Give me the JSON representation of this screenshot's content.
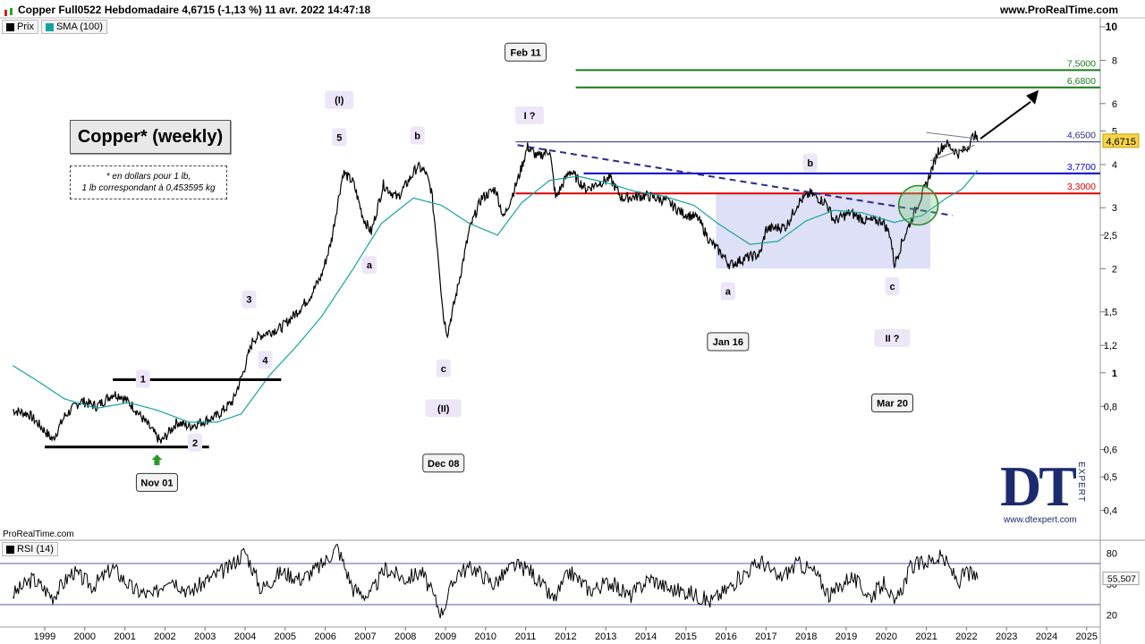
{
  "header": {
    "title": "Copper Full0522 Hebdomadaire 4,6715 (-1,13 %) 11 avr. 2022 14:47:18",
    "site": "www.ProRealTime.com"
  },
  "legend": {
    "price_label": "Prix",
    "sma_label": "SMA (100)"
  },
  "title_box": "Copper* (weekly)",
  "note": {
    "line1": "* en dollars pour 1 lb,",
    "line2": "1 lb correspondant à 0,453595 kg"
  },
  "source_label": "ProRealTime.com",
  "rsi_legend": "RSI (14)",
  "logo": {
    "text": "DT",
    "sub": "EXPERT",
    "url": "www.dtexpert.com"
  },
  "colors": {
    "price": "#000000",
    "sma": "#17a2a2",
    "green_level": "#1a7a1a",
    "blue_level": "#0000cc",
    "red_level": "#dd0000",
    "trend_dash": "#2a2a8a",
    "shade": "#c7ccf0",
    "rsi_line": "#000000",
    "rsi_over": "#f4b6b6",
    "rsi_under": "#b9e4b9"
  },
  "chart_data": {
    "type": "line",
    "title": "Copper Full0522 Hebdomadaire",
    "x_ticks": [
      "1999",
      "2000",
      "2001",
      "2002",
      "2003",
      "2004",
      "2005",
      "2006",
      "2007",
      "2008",
      "2009",
      "2010",
      "2011",
      "2012",
      "2013",
      "2014",
      "2015",
      "2016",
      "2017",
      "2018",
      "2019",
      "2020",
      "2021",
      "2022",
      "2023",
      "2024",
      "2025"
    ],
    "y_scale": "log",
    "ylim": [
      0.33,
      10
    ],
    "y_ticks": [
      {
        "value": 10,
        "label": "10"
      },
      {
        "value": 8,
        "label": "8"
      },
      {
        "value": 6,
        "label": "6"
      },
      {
        "value": 5,
        "label": "5"
      },
      {
        "value": 4,
        "label": "4"
      },
      {
        "value": 3,
        "label": "3"
      },
      {
        "value": 2.5,
        "label": "2,5"
      },
      {
        "value": 2,
        "label": "2"
      },
      {
        "value": 1.5,
        "label": "1,5"
      },
      {
        "value": 1.2,
        "label": "1,2"
      },
      {
        "value": 1,
        "label": "1"
      },
      {
        "value": 0.8,
        "label": "0,8"
      },
      {
        "value": 0.6,
        "label": "0,6"
      },
      {
        "value": 0.5,
        "label": "0,5"
      },
      {
        "value": 0.4,
        "label": "0,4"
      }
    ],
    "series": [
      {
        "name": "Prix",
        "points": [
          [
            1998.2,
            0.78
          ],
          [
            1998.6,
            0.76
          ],
          [
            1998.9,
            0.7
          ],
          [
            1999.2,
            0.64
          ],
          [
            1999.5,
            0.75
          ],
          [
            1999.9,
            0.83
          ],
          [
            2000.3,
            0.8
          ],
          [
            2000.7,
            0.87
          ],
          [
            2000.9,
            0.86
          ],
          [
            2001.2,
            0.8
          ],
          [
            2001.6,
            0.7
          ],
          [
            2001.9,
            0.63
          ],
          [
            2002.3,
            0.72
          ],
          [
            2002.6,
            0.7
          ],
          [
            2002.9,
            0.72
          ],
          [
            2003.3,
            0.75
          ],
          [
            2003.7,
            0.83
          ],
          [
            2003.95,
            1.0
          ],
          [
            2004.2,
            1.25
          ],
          [
            2004.5,
            1.3
          ],
          [
            2004.9,
            1.35
          ],
          [
            2005.3,
            1.5
          ],
          [
            2005.6,
            1.65
          ],
          [
            2005.9,
            1.9
          ],
          [
            2006.15,
            2.4
          ],
          [
            2006.35,
            3.3
          ],
          [
            2006.45,
            3.8
          ],
          [
            2006.7,
            3.55
          ],
          [
            2006.95,
            2.8
          ],
          [
            2007.15,
            2.55
          ],
          [
            2007.45,
            3.5
          ],
          [
            2007.8,
            3.2
          ],
          [
            2008.15,
            3.7
          ],
          [
            2008.3,
            3.95
          ],
          [
            2008.5,
            3.8
          ],
          [
            2008.65,
            3.35
          ],
          [
            2008.8,
            2.3
          ],
          [
            2008.95,
            1.45
          ],
          [
            2009.05,
            1.3
          ],
          [
            2009.3,
            1.75
          ],
          [
            2009.6,
            2.6
          ],
          [
            2009.9,
            3.2
          ],
          [
            2010.25,
            3.4
          ],
          [
            2010.45,
            2.8
          ],
          [
            2010.8,
            3.6
          ],
          [
            2011.05,
            4.5
          ],
          [
            2011.3,
            4.2
          ],
          [
            2011.6,
            4.4
          ],
          [
            2011.75,
            3.2
          ],
          [
            2012.1,
            3.85
          ],
          [
            2012.5,
            3.4
          ],
          [
            2013.1,
            3.65
          ],
          [
            2013.4,
            3.2
          ],
          [
            2014.0,
            3.25
          ],
          [
            2014.5,
            3.15
          ],
          [
            2014.9,
            2.9
          ],
          [
            2015.3,
            2.8
          ],
          [
            2015.6,
            2.4
          ],
          [
            2015.9,
            2.2
          ],
          [
            2016.1,
            2.05
          ],
          [
            2016.5,
            2.15
          ],
          [
            2016.85,
            2.2
          ],
          [
            2017.0,
            2.6
          ],
          [
            2017.5,
            2.65
          ],
          [
            2017.8,
            3.1
          ],
          [
            2018.1,
            3.3
          ],
          [
            2018.5,
            3.1
          ],
          [
            2018.7,
            2.75
          ],
          [
            2019.1,
            2.9
          ],
          [
            2019.5,
            2.75
          ],
          [
            2019.9,
            2.75
          ],
          [
            2020.1,
            2.5
          ],
          [
            2020.2,
            2.05
          ],
          [
            2020.4,
            2.4
          ],
          [
            2020.75,
            3.0
          ],
          [
            2021.0,
            3.5
          ],
          [
            2021.3,
            4.4
          ],
          [
            2021.5,
            4.6
          ],
          [
            2021.8,
            4.3
          ],
          [
            2022.0,
            4.45
          ],
          [
            2022.2,
            4.9
          ],
          [
            2022.28,
            4.67
          ]
        ]
      },
      {
        "name": "SMA (100)",
        "points": [
          [
            1998.2,
            1.05
          ],
          [
            1998.8,
            0.95
          ],
          [
            1999.5,
            0.84
          ],
          [
            2000.3,
            0.79
          ],
          [
            2001.1,
            0.82
          ],
          [
            2001.8,
            0.78
          ],
          [
            2002.6,
            0.72
          ],
          [
            2003.3,
            0.72
          ],
          [
            2003.9,
            0.76
          ],
          [
            2004.6,
            0.98
          ],
          [
            2005.3,
            1.2
          ],
          [
            2005.9,
            1.45
          ],
          [
            2006.7,
            2.0
          ],
          [
            2007.4,
            2.7
          ],
          [
            2008.2,
            3.2
          ],
          [
            2008.9,
            3.05
          ],
          [
            2009.6,
            2.7
          ],
          [
            2010.3,
            2.5
          ],
          [
            2010.9,
            3.1
          ],
          [
            2011.6,
            3.6
          ],
          [
            2012.3,
            3.7
          ],
          [
            2013.0,
            3.55
          ],
          [
            2013.7,
            3.35
          ],
          [
            2014.4,
            3.25
          ],
          [
            2015.2,
            3.05
          ],
          [
            2015.8,
            2.7
          ],
          [
            2016.6,
            2.35
          ],
          [
            2017.3,
            2.4
          ],
          [
            2018.0,
            2.75
          ],
          [
            2018.7,
            2.95
          ],
          [
            2019.4,
            2.9
          ],
          [
            2020.2,
            2.72
          ],
          [
            2020.9,
            2.85
          ],
          [
            2021.5,
            3.2
          ],
          [
            2021.9,
            3.4
          ],
          [
            2022.28,
            3.85
          ]
        ]
      }
    ],
    "levels": [
      {
        "value": 7.5,
        "label": "7,5000",
        "color": "#1a7a1a"
      },
      {
        "value": 6.68,
        "label": "6,6800",
        "color": "#1a7a1a"
      },
      {
        "value": 4.65,
        "label": "4,6500",
        "color": "#2a2a8a"
      },
      {
        "value": 3.77,
        "label": "3,7700",
        "color": "#0000cc"
      },
      {
        "value": 3.3,
        "label": "3,3000",
        "color": "#dd0000"
      }
    ],
    "current_value": {
      "value": 4.6715,
      "label": "4,6715"
    },
    "annotations": [
      {
        "text": "Feb 11",
        "type": "date",
        "x": 2011.0,
        "y": 8.45
      },
      {
        "text": "I ?",
        "type": "wave",
        "x": 2011.1,
        "y": 5.55
      },
      {
        "text": "(I)",
        "type": "wave",
        "x": 2006.35,
        "y": 6.15
      },
      {
        "text": "5",
        "type": "wave",
        "x": 2006.35,
        "y": 4.8
      },
      {
        "text": "b",
        "type": "wave",
        "x": 2008.3,
        "y": 4.85
      },
      {
        "text": "a",
        "type": "wave",
        "x": 2007.1,
        "y": 2.05
      },
      {
        "text": "c",
        "type": "wave",
        "x": 2008.95,
        "y": 1.03
      },
      {
        "text": "(II)",
        "type": "wave",
        "x": 2008.95,
        "y": 0.79
      },
      {
        "text": "Dec 08",
        "type": "date",
        "x": 2008.95,
        "y": 0.548
      },
      {
        "text": "3",
        "type": "wave",
        "x": 2004.1,
        "y": 1.63
      },
      {
        "text": "4",
        "type": "wave",
        "x": 2004.5,
        "y": 1.09
      },
      {
        "text": "1",
        "type": "wave",
        "x": 2001.45,
        "y": 0.96
      },
      {
        "text": "2",
        "type": "wave",
        "x": 2002.75,
        "y": 0.628
      },
      {
        "text": "Nov 01",
        "type": "date",
        "x": 2001.8,
        "y": 0.482
      },
      {
        "text": "b",
        "type": "wave",
        "x": 2018.1,
        "y": 4.05
      },
      {
        "text": "a",
        "type": "wave",
        "x": 2016.05,
        "y": 1.72
      },
      {
        "text": "Jan 16",
        "type": "date",
        "x": 2016.05,
        "y": 1.23
      },
      {
        "text": "c",
        "type": "wave",
        "x": 2020.15,
        "y": 1.78
      },
      {
        "text": "II ?",
        "type": "wave",
        "x": 2020.15,
        "y": 1.26
      },
      {
        "text": "Mar 20",
        "type": "date",
        "x": 2020.15,
        "y": 0.818
      }
    ]
  },
  "rsi": {
    "name": "RSI (14)",
    "ylim": [
      10,
      90
    ],
    "y_ticks": [
      {
        "value": 80,
        "label": "80"
      },
      {
        "value": 50,
        "label": "50"
      },
      {
        "value": 20,
        "label": "20"
      }
    ],
    "overbought": 70,
    "oversold": 30,
    "current_label": "55,507",
    "points": [
      [
        1998.2,
        40
      ],
      [
        1998.7,
        55
      ],
      [
        1999.2,
        38
      ],
      [
        1999.7,
        62
      ],
      [
        2000.2,
        48
      ],
      [
        2000.7,
        66
      ],
      [
        2001.2,
        45
      ],
      [
        2001.7,
        38
      ],
      [
        2002.1,
        58
      ],
      [
        2002.6,
        42
      ],
      [
        2003.1,
        55
      ],
      [
        2003.6,
        66
      ],
      [
        2004.0,
        82
      ],
      [
        2004.4,
        45
      ],
      [
        2004.9,
        62
      ],
      [
        2005.4,
        55
      ],
      [
        2005.9,
        68
      ],
      [
        2006.3,
        86
      ],
      [
        2006.7,
        45
      ],
      [
        2007.1,
        38
      ],
      [
        2007.5,
        65
      ],
      [
        2008.0,
        55
      ],
      [
        2008.4,
        62
      ],
      [
        2008.9,
        22
      ],
      [
        2009.3,
        62
      ],
      [
        2009.7,
        66
      ],
      [
        2010.2,
        50
      ],
      [
        2010.7,
        68
      ],
      [
        2011.1,
        64
      ],
      [
        2011.7,
        34
      ],
      [
        2012.1,
        62
      ],
      [
        2012.6,
        44
      ],
      [
        2013.1,
        52
      ],
      [
        2013.6,
        38
      ],
      [
        2014.1,
        56
      ],
      [
        2014.6,
        45
      ],
      [
        2015.1,
        42
      ],
      [
        2015.6,
        33
      ],
      [
        2016.0,
        44
      ],
      [
        2016.5,
        62
      ],
      [
        2016.9,
        72
      ],
      [
        2017.3,
        55
      ],
      [
        2017.8,
        70
      ],
      [
        2018.2,
        62
      ],
      [
        2018.6,
        38
      ],
      [
        2019.1,
        58
      ],
      [
        2019.6,
        38
      ],
      [
        2020.0,
        52
      ],
      [
        2020.2,
        28
      ],
      [
        2020.6,
        66
      ],
      [
        2021.0,
        72
      ],
      [
        2021.4,
        76
      ],
      [
        2021.8,
        52
      ],
      [
        2022.0,
        62
      ],
      [
        2022.28,
        55
      ]
    ]
  }
}
